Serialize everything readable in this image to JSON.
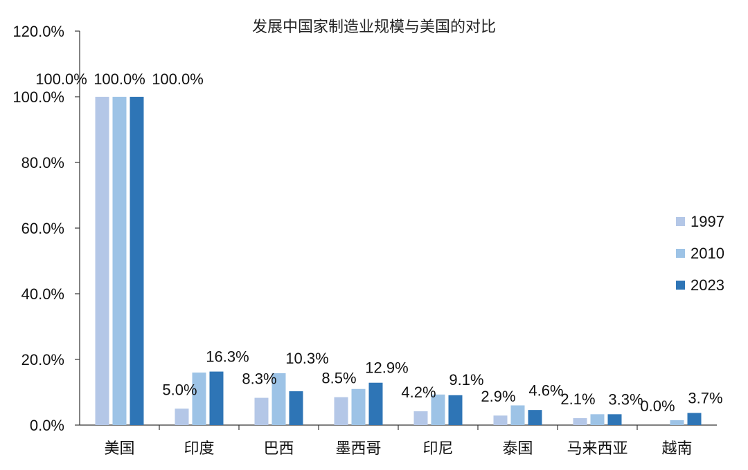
{
  "chart_data": {
    "type": "bar",
    "title": "发展中国家制造业规模与美国的对比",
    "xlabel": "",
    "ylabel": "",
    "ylim": [
      0,
      120
    ],
    "yticks": [
      "0.0%",
      "20.0%",
      "40.0%",
      "60.0%",
      "80.0%",
      "100.0%",
      "120.0%"
    ],
    "ytick_values": [
      0,
      20,
      40,
      60,
      80,
      100,
      120
    ],
    "grid": false,
    "legend_position": "right",
    "categories": [
      "美国",
      "印度",
      "巴西",
      "墨西哥",
      "印尼",
      "泰国",
      "马来西亚",
      "越南"
    ],
    "series": [
      {
        "name": "1997",
        "color": "#b4c7e7",
        "values": [
          100.0,
          5.0,
          8.3,
          8.5,
          4.2,
          2.9,
          2.1,
          0.0
        ]
      },
      {
        "name": "2010",
        "color": "#9dc3e6",
        "values": [
          100.0,
          16.0,
          15.8,
          11.0,
          9.3,
          6.0,
          3.3,
          1.5
        ]
      },
      {
        "name": "2023",
        "color": "#2e75b6",
        "values": [
          100.0,
          16.3,
          10.3,
          12.9,
          9.1,
          4.6,
          3.3,
          3.7
        ]
      }
    ],
    "data_labels": [
      [
        "100.0%",
        "100.0%",
        "100.0%"
      ],
      [
        "5.0%",
        "",
        "16.3%"
      ],
      [
        "8.3%",
        "",
        "10.3%"
      ],
      [
        "8.5%",
        "",
        "12.9%"
      ],
      [
        "4.2%",
        "",
        "9.1%"
      ],
      [
        "2.9%",
        "",
        "4.6%"
      ],
      [
        "2.1%",
        "",
        "3.3%"
      ],
      [
        "0.0%",
        "",
        "3.7%"
      ]
    ]
  }
}
